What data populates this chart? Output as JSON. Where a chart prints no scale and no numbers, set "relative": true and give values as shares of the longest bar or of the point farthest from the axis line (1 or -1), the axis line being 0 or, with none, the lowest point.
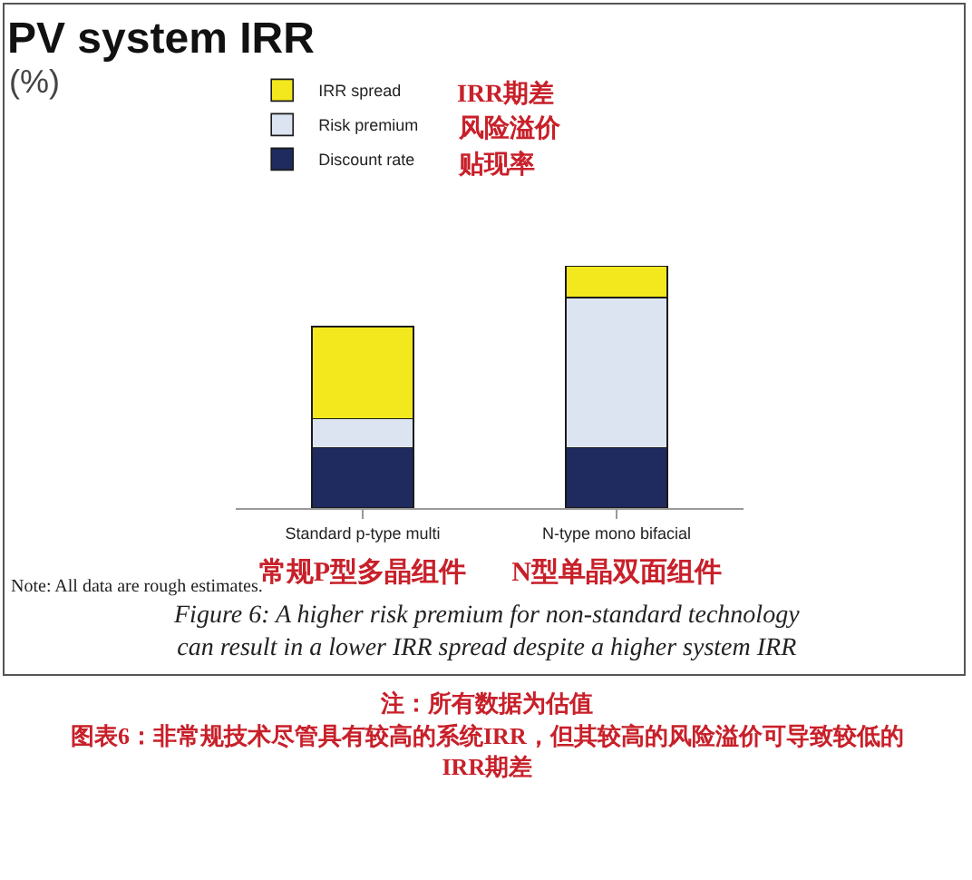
{
  "chart_data": {
    "type": "bar",
    "title": "PV system IRR",
    "subtitle": "(%)",
    "stacked": true,
    "relative": true,
    "legend": "top left",
    "categories": [
      "Standard p-type multi\n常规P型多晶组件",
      "N-type mono bifacial\nN型单晶双面组件"
    ],
    "series": [
      {
        "name": "Discount rate",
        "color": "#1f2a5e",
        "values": [
          0.25,
          0.25
        ]
      },
      {
        "name": "Risk premium",
        "color": "#dce4f2",
        "values": [
          0.12,
          0.62
        ]
      },
      {
        "name": "IRR spread",
        "color": "#f3e81e",
        "values": [
          0.38,
          0.13
        ]
      }
    ],
    "annotations": [
      "IRR期差",
      "风险溢价",
      "贴现率",
      "Note: All data are rough estimates.",
      "Figure 6: A higher risk premium for non-standard technology\ncan result in a lower IRR spread despite a higher system IRR",
      "注：所有数据为估值",
      "图表6：非常规技术尽管具有较高的系统IRR，但其较高的风险溢价可导致较低的\nIRR期差"
    ]
  }
}
